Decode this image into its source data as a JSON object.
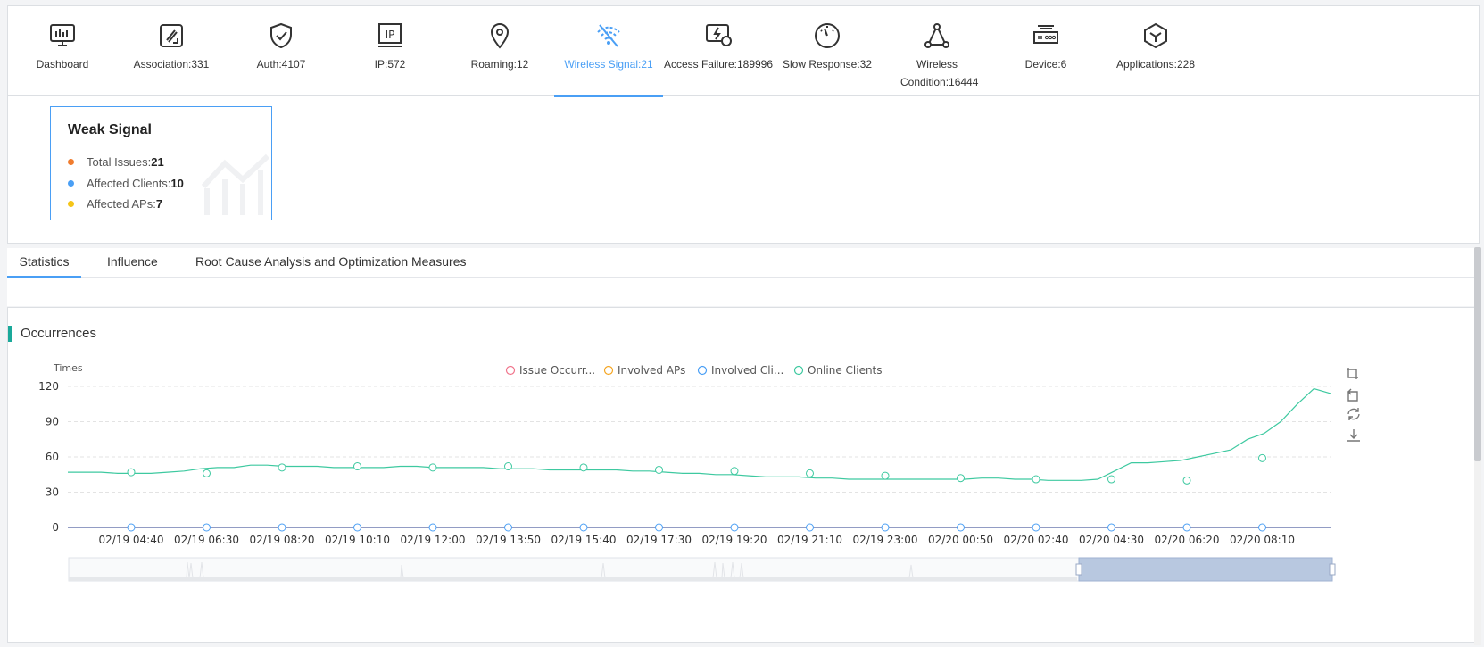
{
  "nav": {
    "items": [
      {
        "label": "Dashboard",
        "icon": "monitor-chart-icon"
      },
      {
        "label": "Association:331",
        "icon": "edit-link-icon"
      },
      {
        "label": "Auth:4107",
        "icon": "shield-check-icon"
      },
      {
        "label": "IP:572",
        "icon": "ip-icon"
      },
      {
        "label": "Roaming:12",
        "icon": "location-pin-icon"
      },
      {
        "label": "Wireless Signal:21",
        "icon": "wifi-weak-icon"
      },
      {
        "label": "Access Failure:189996",
        "icon": "monitor-alert-icon"
      },
      {
        "label": "Slow Response:32",
        "icon": "gauge-icon"
      },
      {
        "label": "Wireless Condition:16444",
        "icon": "network-nodes-icon"
      },
      {
        "label": "Device:6",
        "icon": "router-device-icon"
      },
      {
        "label": "Applications:228",
        "icon": "cube-icon"
      }
    ],
    "active_index": 5,
    "active_color": "#4a9ff5"
  },
  "summary": {
    "title": "Weak Signal",
    "rows": [
      {
        "label": "Total Issues:",
        "value": "21",
        "color": "#f07c2e"
      },
      {
        "label": "Affected Clients:",
        "value": "10",
        "color": "#4a9ff5"
      },
      {
        "label": "Affected APs:",
        "value": "7",
        "color": "#f5c518"
      }
    ]
  },
  "tabs": [
    {
      "label": "Statistics",
      "active": true
    },
    {
      "label": "Influence",
      "active": false
    },
    {
      "label": "Root Cause Analysis and Optimization Measures",
      "active": false
    }
  ],
  "chart_section": {
    "title": "Occurrences",
    "toolbar_icons": [
      "zoom-area-icon",
      "zoom-reset-icon",
      "restore-icon",
      "download-icon"
    ]
  },
  "chart_data": {
    "type": "line",
    "ylabel": "Times",
    "ylim": [
      0,
      120
    ],
    "yticks": [
      0,
      30,
      60,
      90,
      120
    ],
    "xticks": [
      "02/19 04:40",
      "02/19 06:30",
      "02/19 08:20",
      "02/19 10:10",
      "02/19 12:00",
      "02/19 13:50",
      "02/19 15:40",
      "02/19 17:30",
      "02/19 19:20",
      "02/19 21:10",
      "02/19 23:00",
      "02/20 00:50",
      "02/20 02:40",
      "02/20 04:30",
      "02/20 06:20",
      "02/20 08:10"
    ],
    "legend": [
      {
        "name": "Issue Occurr...",
        "color": "#f0758c"
      },
      {
        "name": "Involved APs",
        "color": "#f5a623"
      },
      {
        "name": "Involved Cli...",
        "color": "#4a9ff5"
      },
      {
        "name": "Online Clients",
        "color": "#3ec9a0"
      }
    ],
    "legend_position": "top-center",
    "grid": true,
    "online_clients": [
      47,
      47,
      47,
      46,
      46,
      46,
      47,
      48,
      50,
      51,
      51,
      53,
      53,
      52,
      52,
      52,
      51,
      51,
      51,
      51,
      52,
      52,
      51,
      51,
      51,
      51,
      50,
      50,
      50,
      49,
      49,
      49,
      49,
      49,
      48,
      48,
      47,
      46,
      46,
      45,
      45,
      44,
      43,
      43,
      43,
      42,
      42,
      41,
      41,
      41,
      41,
      41,
      41,
      41,
      41,
      42,
      42,
      41,
      41,
      40,
      40,
      40,
      41,
      48,
      55,
      55,
      56,
      57,
      60,
      63,
      66,
      75,
      80,
      90,
      105,
      118,
      114
    ],
    "marker_online": [
      47,
      46,
      51,
      52,
      51,
      52,
      51,
      49,
      48,
      46,
      44,
      42,
      41,
      41,
      40,
      59
    ],
    "marker_zero": [
      0,
      0,
      0,
      0,
      0,
      0,
      0,
      0,
      0,
      0,
      0,
      0,
      0,
      0,
      0,
      0
    ]
  }
}
